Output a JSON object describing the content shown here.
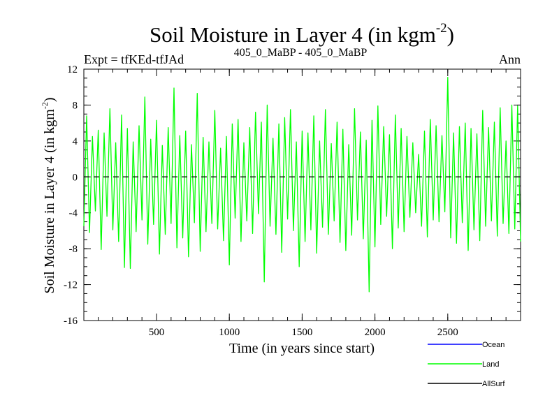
{
  "chart_data": {
    "type": "line",
    "title": "Soil Moisture in Layer 4 (in kgm",
    "title_sup": "-2",
    "title_end": ")",
    "subtitle_left": "Expt = tfKEd-tfJAd",
    "subtitle_center": "405_0_MaBP - 405_0_MaBP",
    "subtitle_right": "Ann",
    "xlabel": "Time (in years since start)",
    "ylabel": "Soil Moisture in Layer 4 (in kgm",
    "ylabel_sup": "-2",
    "ylabel_end": ")",
    "xlim": [
      1,
      3000
    ],
    "ylim": [
      -16,
      12
    ],
    "x_ticks": [
      500,
      1000,
      1500,
      2000,
      2500
    ],
    "x_tick_labels": [
      "500",
      "1000",
      "1500",
      "2000",
      "2500"
    ],
    "y_ticks": [
      -16,
      -12,
      -8,
      -4,
      0,
      4,
      8,
      12
    ],
    "y_tick_labels": [
      "-16",
      "-12",
      "-8",
      "-4",
      "0",
      "4",
      "8",
      "12"
    ],
    "reference_line": 0,
    "grid": false,
    "legend_position": "bottom-right",
    "series": [
      {
        "name": "Ocean",
        "color": "#0000ff",
        "x": [],
        "y": []
      },
      {
        "name": "Land",
        "color": "#00ff00",
        "x": [
          1,
          20,
          40,
          60,
          80,
          100,
          120,
          140,
          160,
          180,
          200,
          220,
          240,
          260,
          280,
          300,
          320,
          340,
          360,
          380,
          400,
          420,
          440,
          460,
          480,
          500,
          520,
          540,
          560,
          580,
          600,
          620,
          640,
          660,
          680,
          700,
          720,
          740,
          760,
          780,
          800,
          820,
          840,
          860,
          880,
          900,
          920,
          940,
          960,
          980,
          1000,
          1020,
          1040,
          1060,
          1080,
          1100,
          1120,
          1140,
          1160,
          1180,
          1200,
          1220,
          1240,
          1260,
          1280,
          1300,
          1320,
          1340,
          1360,
          1380,
          1400,
          1420,
          1440,
          1460,
          1480,
          1500,
          1520,
          1540,
          1560,
          1580,
          1600,
          1620,
          1640,
          1660,
          1680,
          1700,
          1720,
          1740,
          1760,
          1780,
          1800,
          1820,
          1840,
          1860,
          1880,
          1900,
          1920,
          1940,
          1960,
          1980,
          2000,
          2020,
          2040,
          2060,
          2080,
          2100,
          2120,
          2140,
          2160,
          2180,
          2200,
          2220,
          2240,
          2260,
          2280,
          2300,
          2320,
          2340,
          2360,
          2380,
          2400,
          2420,
          2440,
          2460,
          2480,
          2500,
          2520,
          2540,
          2560,
          2580,
          2600,
          2620,
          2640,
          2660,
          2680,
          2700,
          2720,
          2740,
          2760,
          2780,
          2800,
          2820,
          2840,
          2860,
          2880,
          2900,
          2920,
          2940,
          2960,
          2980,
          3000
        ],
        "y": [
          -5.5,
          6.8,
          -6.2,
          4.5,
          -3.8,
          5.2,
          -8.1,
          4.9,
          -4.4,
          7.6,
          -5.9,
          3.8,
          -7.2,
          6.9,
          -10.1,
          5.4,
          -10.2,
          3.9,
          -6.1,
          5.7,
          -4.8,
          8.9,
          -7.5,
          4.2,
          -5.3,
          6.3,
          -8.6,
          3.5,
          -6.4,
          5.5,
          -5.2,
          9.9,
          -7.9,
          4.6,
          -6.8,
          5.1,
          -8.9,
          3.6,
          -5.1,
          9.3,
          -8.3,
          4.4,
          -6.1,
          3.9,
          -5.2,
          7.4,
          -5.8,
          3.2,
          -7.1,
          4.5,
          -9.8,
          5.9,
          -4.6,
          6.4,
          -7.2,
          3.8,
          -4.9,
          5.5,
          -6.3,
          7.2,
          -4.1,
          6.1,
          -11.7,
          8.0,
          -5.5,
          4.3,
          -6.4,
          5.9,
          -8.4,
          6.6,
          -4.7,
          7.5,
          -6.0,
          3.9,
          -10.0,
          5.1,
          -7.2,
          4.9,
          -5.9,
          6.8,
          -8.5,
          4.0,
          -5.6,
          7.5,
          -6.4,
          3.7,
          -4.9,
          6.1,
          -7.3,
          5.3,
          -8.2,
          3.6,
          -6.5,
          7.6,
          -4.8,
          5.0,
          -6.9,
          4.1,
          -12.8,
          6.3,
          -7.8,
          7.9,
          -5.3,
          5.6,
          -4.4,
          4.7,
          -8.0,
          6.9,
          -5.7,
          5.4,
          -6.1,
          4.5,
          -4.5,
          3.8,
          -4.0,
          2.5,
          -5.5,
          5.1,
          -6.7,
          6.4,
          -4.8,
          5.7,
          -5.0,
          4.6,
          -3.9,
          11.1,
          -6.8,
          4.9,
          -7.4,
          5.6,
          -5.1,
          6.0,
          -8.2,
          5.4,
          -5.9,
          4.8,
          -7.1,
          7.4,
          -5.5,
          5.5,
          -4.9,
          6.1,
          -6.6,
          7.7,
          -5.2,
          4.0,
          -6.3,
          8.0,
          -5.8,
          7.9,
          -7.2
        ]
      },
      {
        "name": "AllSurf",
        "color": "#000000",
        "x": [],
        "y": []
      }
    ]
  }
}
